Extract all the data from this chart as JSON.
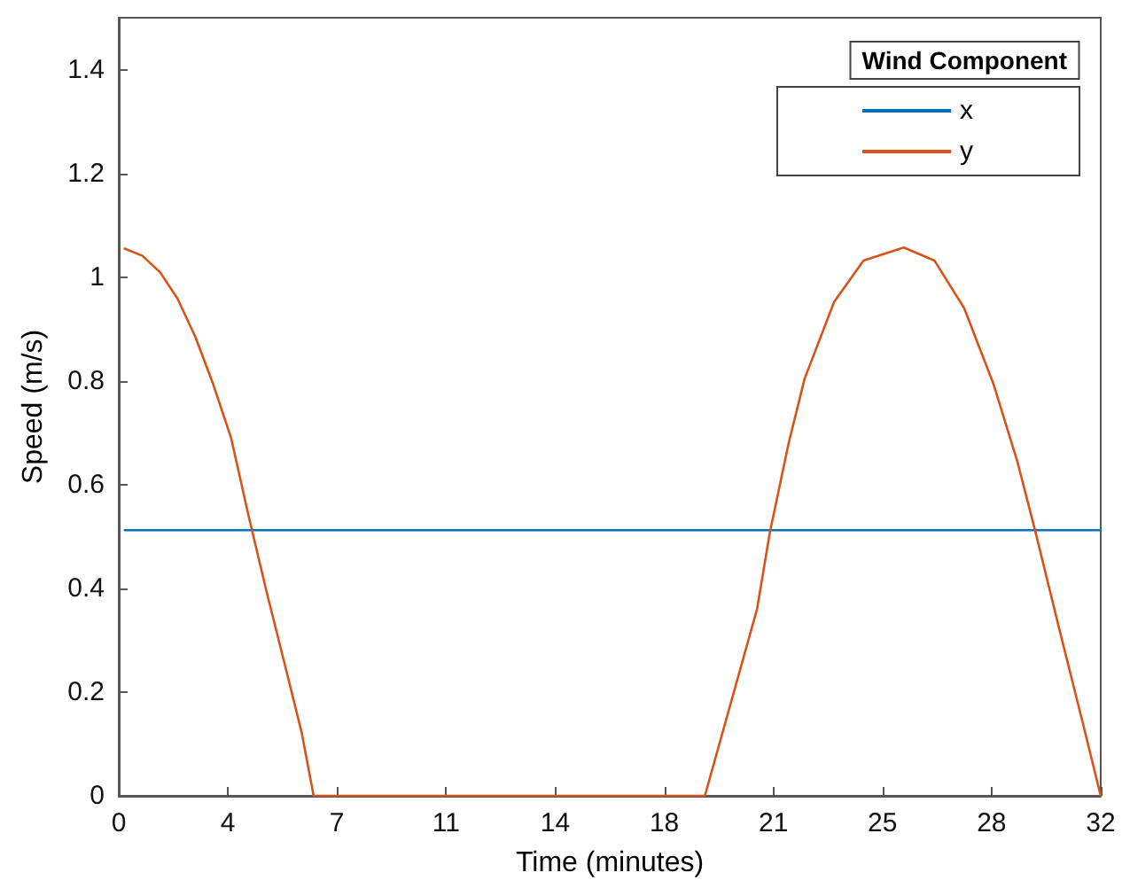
{
  "chart_data": {
    "type": "line",
    "xlabel": "Time (minutes)",
    "ylabel": "Speed (m/s)",
    "legend_title": "Wind Component",
    "xlim": [
      0,
      32
    ],
    "xticks": [
      {
        "value": 0,
        "label": "0"
      },
      {
        "value": 3.556,
        "label": "4"
      },
      {
        "value": 7.111,
        "label": "7"
      },
      {
        "value": 10.667,
        "label": "11"
      },
      {
        "value": 14.222,
        "label": "14"
      },
      {
        "value": 17.778,
        "label": "18"
      },
      {
        "value": 21.333,
        "label": "21"
      },
      {
        "value": 24.889,
        "label": "25"
      },
      {
        "value": 28.444,
        "label": "28"
      },
      {
        "value": 32,
        "label": "32"
      }
    ],
    "ylim": [
      0,
      1.5
    ],
    "yticks": [
      0,
      0.2,
      0.4,
      0.6,
      0.8,
      1,
      1.2,
      1.4
    ],
    "series": [
      {
        "name": "x",
        "color": "#0072bd",
        "x": [
          0.2,
          32
        ],
        "values": [
          0.512,
          0.512
        ]
      },
      {
        "name": "y",
        "color": "#d95319",
        "x": [
          0.19,
          0.77,
          1.35,
          1.92,
          2.5,
          3.08,
          3.66,
          4.23,
          4.81,
          5.39,
          5.96,
          6.35,
          8,
          10,
          12,
          14,
          16,
          18,
          19.1,
          20.8,
          21.23,
          21.35,
          21.83,
          22.35,
          23.31,
          24.27,
          25.58,
          26.58,
          27.55,
          28.51,
          29.28,
          29.86,
          30.63,
          31.4,
          32
        ],
        "values": [
          1.055,
          1.041,
          1.009,
          0.958,
          0.884,
          0.793,
          0.69,
          0.54,
          0.395,
          0.258,
          0.122,
          0,
          0,
          0,
          0,
          0,
          0,
          0,
          0,
          0.36,
          0.512,
          0.545,
          0.68,
          0.804,
          0.952,
          1.032,
          1.057,
          1.032,
          0.94,
          0.793,
          0.645,
          0.512,
          0.326,
          0.144,
          0
        ]
      }
    ],
    "legend": "top right",
    "grid": false,
    "marker": "none",
    "line_style": "solid"
  }
}
